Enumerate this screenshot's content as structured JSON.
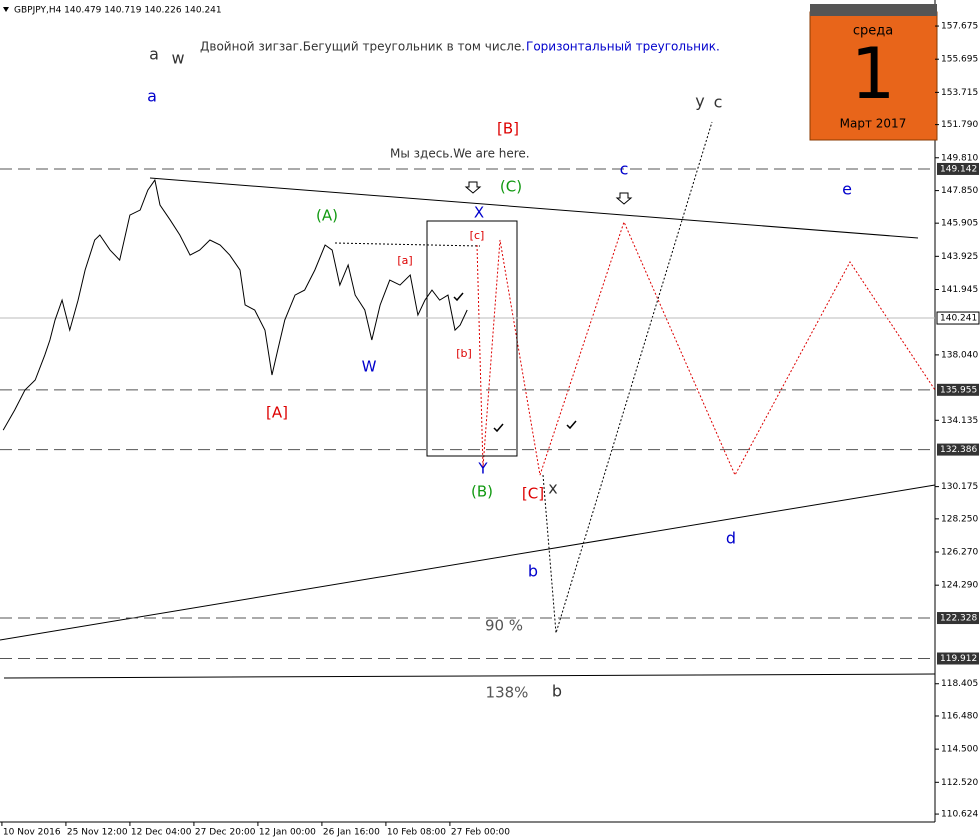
{
  "chart_data": {
    "type": "line",
    "title": "GBPJPY,H4  140.479 140.719 140.226 140.241",
    "xlim": [
      -0.03,
      14.58
    ],
    "xticks": [
      {
        "value": 0,
        "label": "10 Nov 2016"
      },
      {
        "value": 1,
        "label": "25 Nov 12:00"
      },
      {
        "value": 2,
        "label": "12 Dec 04:00"
      },
      {
        "value": 3,
        "label": "27 Dec 20:00"
      },
      {
        "value": 4,
        "label": "12 Jan 00:00"
      },
      {
        "value": 5,
        "label": "26 Jan 16:00"
      },
      {
        "value": 6,
        "label": "10 Feb 08:00"
      },
      {
        "value": 7,
        "label": "27 Feb 00:00"
      }
    ],
    "ylim": [
      110.15,
      159.23
    ],
    "yticks": [
      157.675,
      155.695,
      153.715,
      {
        "value": 151.79,
        "label": "151.790"
      },
      {
        "value": 149.81,
        "label": "149.810"
      },
      {
        "value": 147.85,
        "label": "147.850"
      },
      145.905,
      143.925,
      141.945,
      {
        "value": 138.04,
        "label": "138.040"
      },
      134.135,
      130.175,
      {
        "value": 128.25,
        "label": "128.250"
      },
      {
        "value": 126.27,
        "label": "126.270"
      },
      {
        "value": 124.29,
        "label": "124.290"
      },
      118.405,
      {
        "value": 116.48,
        "label": "116.480"
      },
      {
        "value": 114.5,
        "label": "114.500"
      },
      {
        "value": 112.52,
        "label": "112.520"
      },
      110.624
    ],
    "current_price": 140.241,
    "levels": [
      149.142,
      135.955,
      132.386,
      122.328,
      119.912
    ],
    "series": [
      {
        "name": "GBPJPY",
        "color": "#000000",
        "x": [
          0.02,
          0.2,
          0.36,
          0.52,
          0.67,
          0.75,
          0.83,
          0.94,
          1.06,
          1.19,
          1.3,
          1.45,
          1.53,
          1.69,
          1.84,
          2.0,
          2.16,
          2.28,
          2.39,
          2.47,
          2.63,
          2.78,
          2.94,
          3.09,
          3.25,
          3.41,
          3.56,
          3.72,
          3.8,
          3.95,
          4.11,
          4.22,
          4.31,
          4.42,
          4.58,
          4.73,
          4.89,
          5.05,
          5.16,
          5.28,
          5.41,
          5.52,
          5.67,
          5.78,
          5.91,
          6.06,
          6.22,
          6.38,
          6.5,
          6.61,
          6.72,
          6.84,
          6.97,
          7.08,
          7.16,
          7.27
        ],
        "values": [
          133.55,
          134.75,
          135.94,
          136.54,
          138.03,
          138.93,
          140.12,
          141.31,
          139.52,
          141.31,
          143.11,
          144.9,
          145.2,
          144.3,
          143.7,
          146.39,
          146.69,
          147.88,
          148.48,
          146.99,
          146.09,
          145.2,
          144.0,
          144.3,
          144.9,
          144.6,
          144.0,
          143.11,
          141.02,
          140.72,
          139.52,
          136.84,
          138.33,
          140.12,
          141.61,
          141.91,
          143.11,
          144.6,
          144.3,
          142.21,
          143.41,
          141.61,
          140.72,
          138.93,
          141.02,
          142.51,
          142.21,
          142.81,
          140.42,
          141.31,
          141.91,
          141.31,
          141.61,
          139.52,
          139.82,
          140.72
        ]
      }
    ],
    "annotations": [
      {
        "text": "a",
        "color": "#333333"
      },
      {
        "text": "w",
        "color": "#333333"
      },
      {
        "text": "a",
        "color": "#0000cc"
      },
      {
        "text": "Двойной зигзаг.Бегущий треугольник в том числе.",
        "color": "#333333"
      },
      {
        "text": "Горизонтальный треугольник.",
        "color": "#0000cc"
      },
      {
        "text": "[B]",
        "color": "#dd0000"
      },
      {
        "text": "y",
        "color": "#333333"
      },
      {
        "text": "c",
        "color": "#333333"
      },
      {
        "text": "Мы здесь.We are here.",
        "color": "#333333"
      },
      {
        "text": "c",
        "color": "#0000cc"
      },
      {
        "text": "e",
        "color": "#0000cc"
      },
      {
        "text": "(C)",
        "color": "#119911"
      },
      {
        "text": "(A)",
        "color": "#119911"
      },
      {
        "text": "X",
        "color": "#0000cc"
      },
      {
        "text": "[c]",
        "color": "#dd0000"
      },
      {
        "text": "[a]",
        "color": "#dd0000"
      },
      {
        "text": "[b]",
        "color": "#dd0000"
      },
      {
        "text": "W",
        "color": "#0000cc"
      },
      {
        "text": "[A]",
        "color": "#dd0000"
      },
      {
        "text": "Y",
        "color": "#0000cc"
      },
      {
        "text": "(B)",
        "color": "#119911"
      },
      {
        "text": "[C]",
        "color": "#dd0000"
      },
      {
        "text": "x",
        "color": "#333333"
      },
      {
        "text": "b",
        "color": "#0000cc"
      },
      {
        "text": "d",
        "color": "#0000cc"
      },
      {
        "text": "90 %",
        "color": "#555555"
      },
      {
        "text": "b",
        "color": "#333333"
      },
      {
        "text": "138%",
        "color": "#555555"
      }
    ],
    "calendar": {
      "weekday": "среда",
      "day": "1",
      "month": "Март 2017"
    }
  }
}
